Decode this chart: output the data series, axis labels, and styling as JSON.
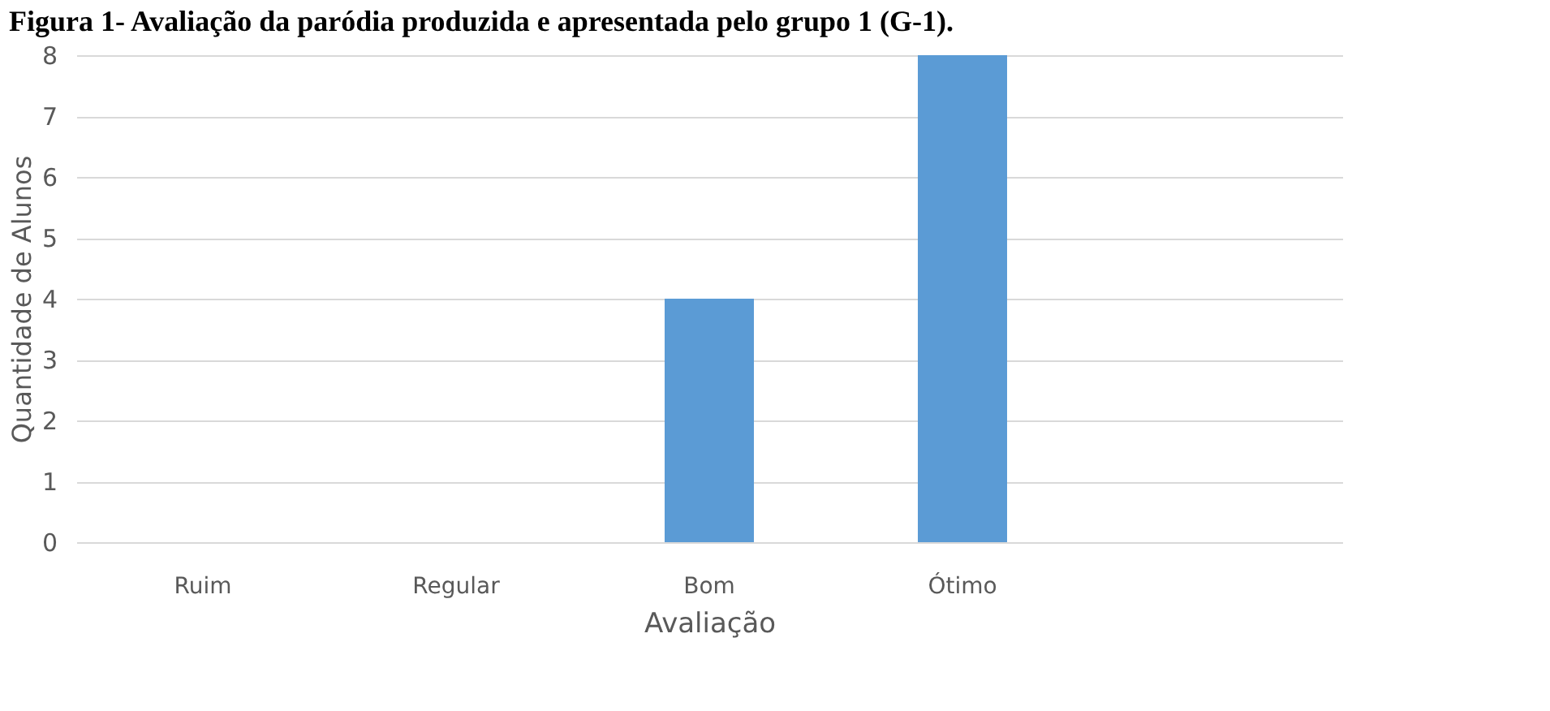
{
  "chart_data": {
    "type": "bar",
    "title": "Figura 1- Avaliação da paródia produzida e apresentada pelo grupo 1 (G-1).",
    "xlabel": "Avaliação",
    "ylabel": "Quantidade de Alunos",
    "categories": [
      "Ruim",
      "Regular",
      "Bom",
      "Ótimo",
      null
    ],
    "values": [
      0,
      0,
      4,
      8,
      null
    ],
    "color": "#5b9bd5",
    "ylim": [
      0,
      8
    ],
    "yticks": [
      0,
      1,
      2,
      3,
      4,
      5,
      6,
      7,
      8
    ],
    "grid": "y"
  }
}
